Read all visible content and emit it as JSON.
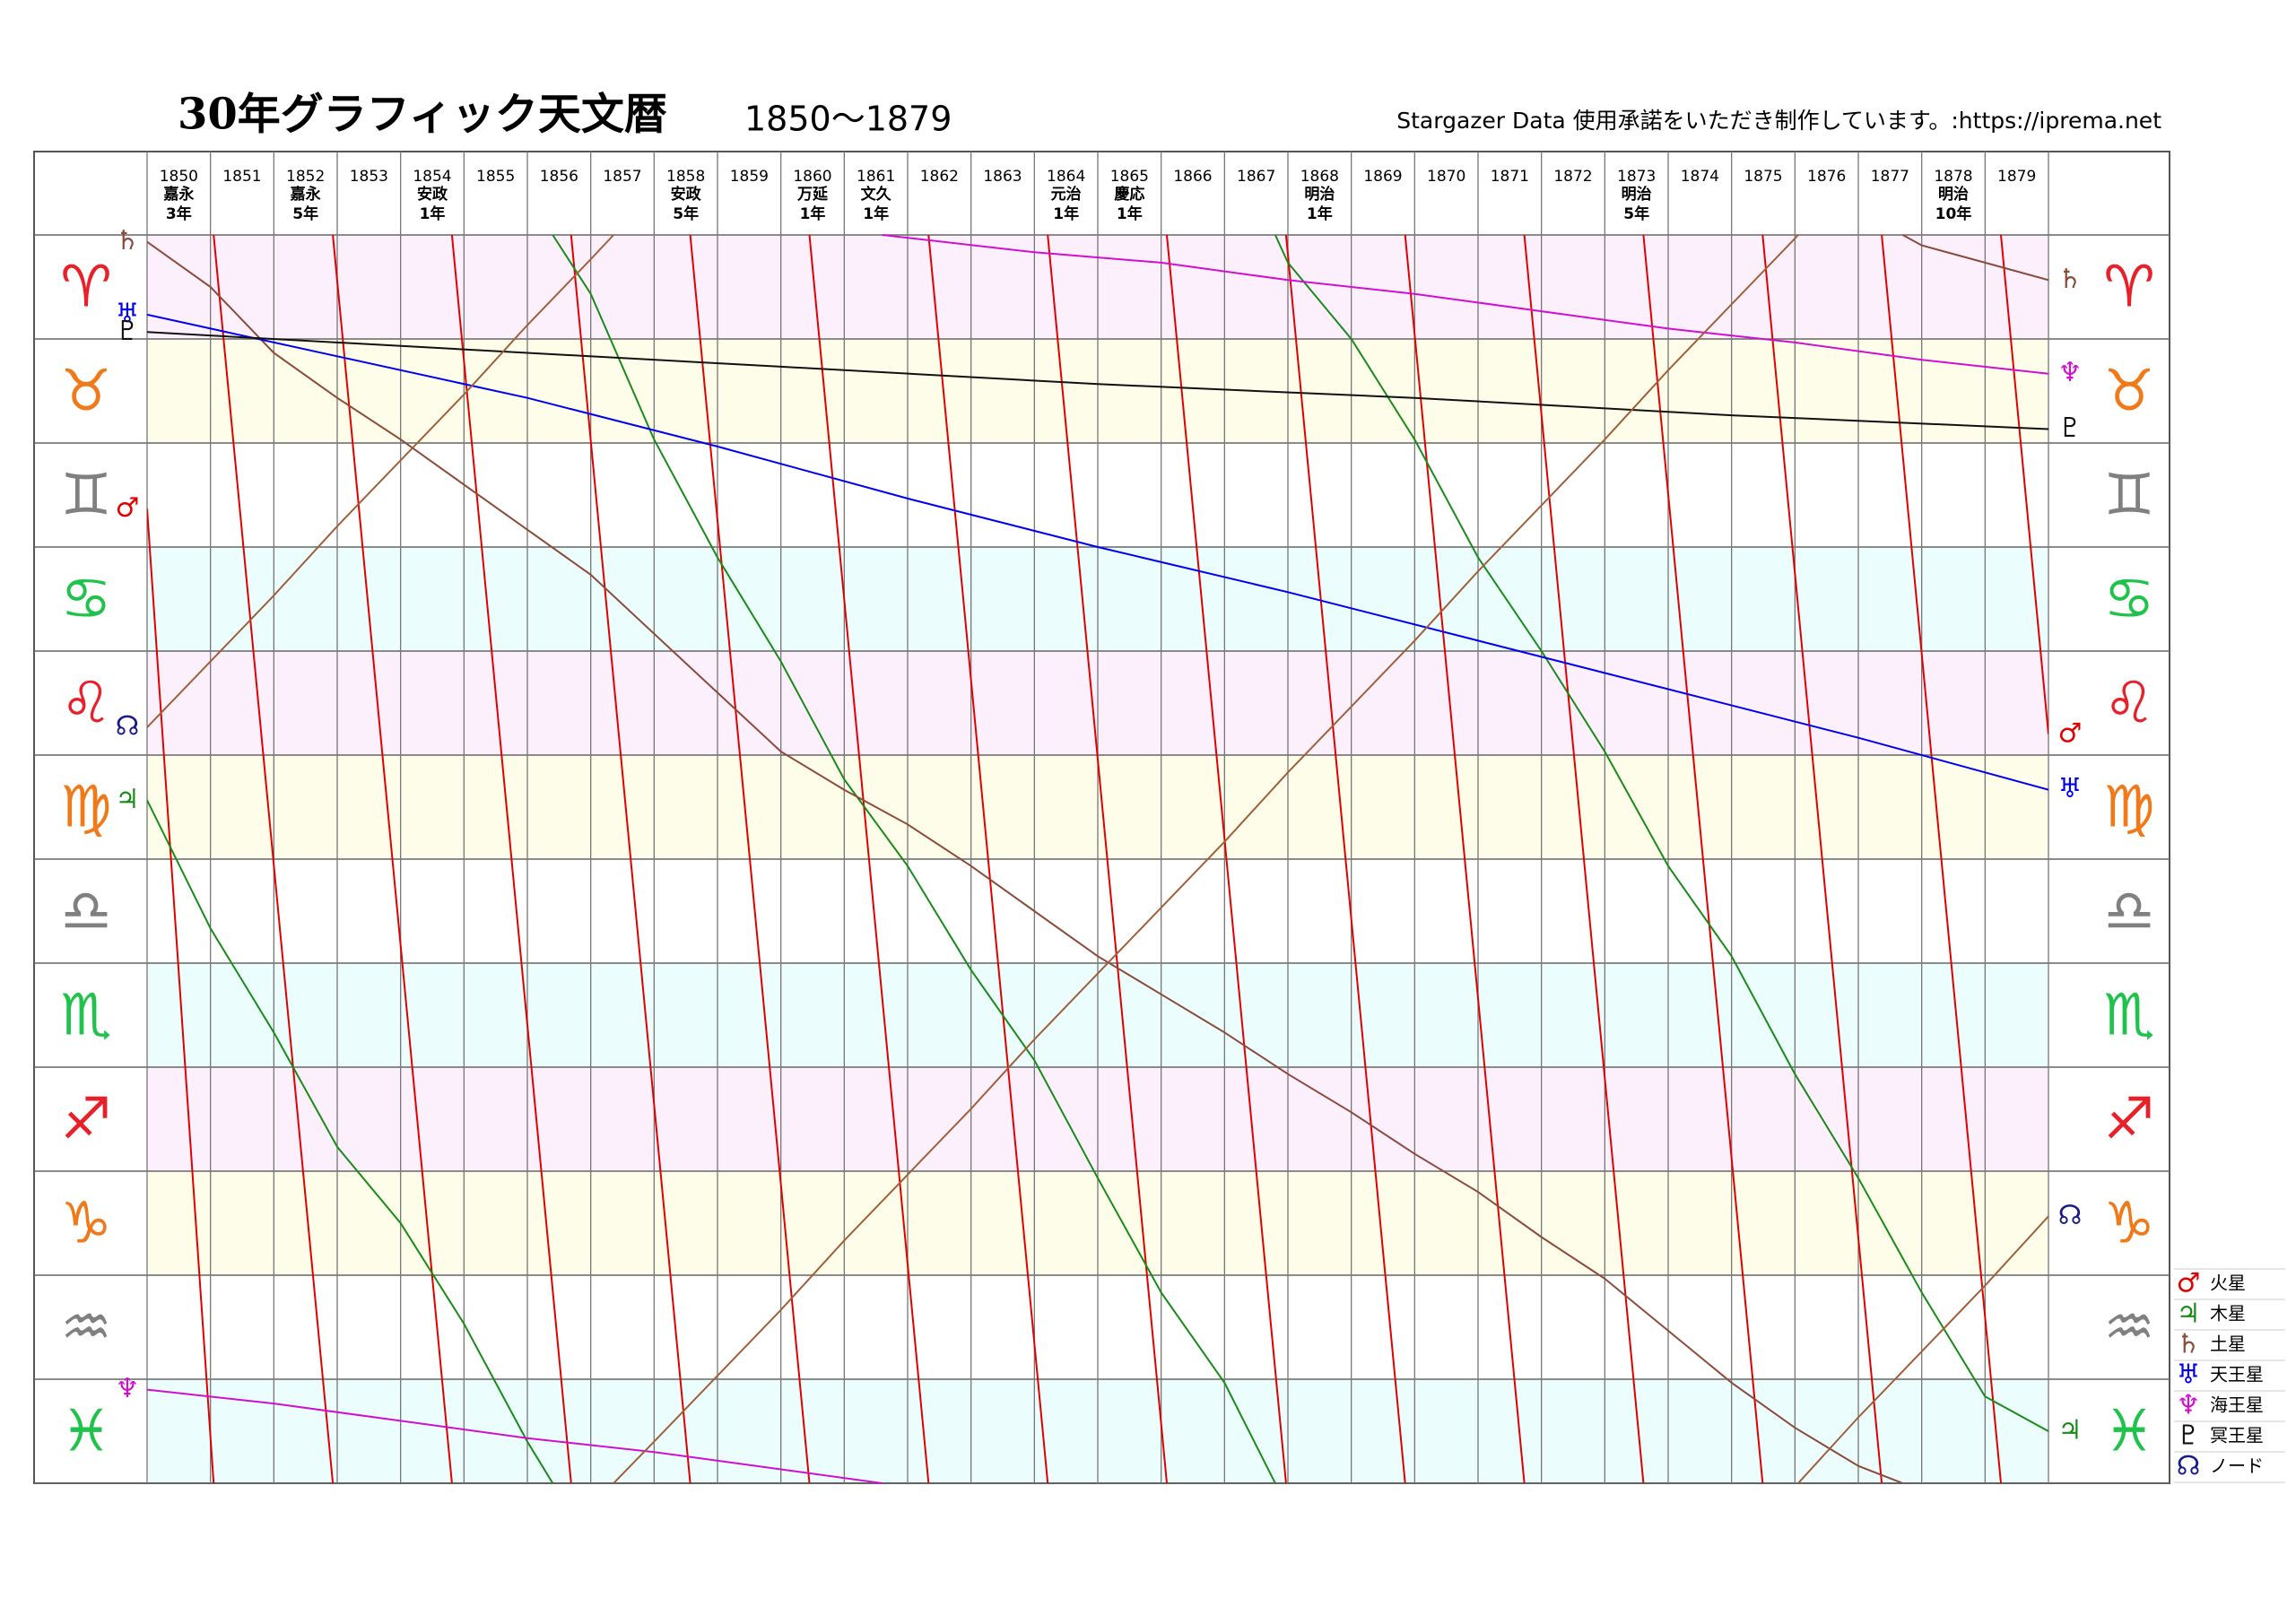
{
  "chart_data": {
    "type": "line",
    "title": "30年グラフィック天文暦",
    "subtitle": "1850〜1879",
    "credit": "Stargazer Data 使用承諾をいただき制作しています。:https://iprema.net",
    "xlim": [
      1850,
      1880
    ],
    "xticks": [
      1850,
      1851,
      1852,
      1853,
      1854,
      1855,
      1856,
      1857,
      1858,
      1859,
      1860,
      1861,
      1862,
      1863,
      1864,
      1865,
      1866,
      1867,
      1868,
      1869,
      1870,
      1871,
      1872,
      1873,
      1874,
      1875,
      1876,
      1877,
      1878,
      1879
    ],
    "eras": [
      {
        "year": 1850,
        "name": "嘉永",
        "nen": "3年"
      },
      {
        "year": 1852,
        "name": "嘉永",
        "nen": "5年"
      },
      {
        "year": 1854,
        "name": "安政",
        "nen": "1年"
      },
      {
        "year": 1858,
        "name": "安政",
        "nen": "5年"
      },
      {
        "year": 1860,
        "name": "万延",
        "nen": "1年"
      },
      {
        "year": 1861,
        "name": "文久",
        "nen": "1年"
      },
      {
        "year": 1864,
        "name": "元治",
        "nen": "1年"
      },
      {
        "year": 1865,
        "name": "慶応",
        "nen": "1年"
      },
      {
        "year": 1868,
        "name": "明治",
        "nen": "1年"
      },
      {
        "year": 1873,
        "name": "明治",
        "nen": "5年"
      },
      {
        "year": 1878,
        "name": "明治",
        "nen": "10年"
      }
    ],
    "ylim": [
      0,
      360
    ],
    "yticks": [
      0,
      30,
      60,
      90,
      120,
      150,
      180,
      210,
      240,
      270,
      300,
      330,
      360
    ],
    "signs": [
      {
        "symbol": "♈",
        "color": "#e8202a"
      },
      {
        "symbol": "♉",
        "color": "#f07a1a"
      },
      {
        "symbol": "♊",
        "color": "#808080"
      },
      {
        "symbol": "♋",
        "color": "#1fc24a"
      },
      {
        "symbol": "♌",
        "color": "#e8202a"
      },
      {
        "symbol": "♍",
        "color": "#f07a1a"
      },
      {
        "symbol": "♎",
        "color": "#808080"
      },
      {
        "symbol": "♏",
        "color": "#1fc24a"
      },
      {
        "symbol": "♐",
        "color": "#e8202a"
      },
      {
        "symbol": "♑",
        "color": "#f07a1a"
      },
      {
        "symbol": "♒",
        "color": "#808080"
      },
      {
        "symbol": "♓",
        "color": "#1fc24a"
      }
    ],
    "band_colors": [
      "#fdf0fd",
      "#fdfde9",
      "#ffffff",
      "#ebfdfd"
    ],
    "grid": true,
    "series": [
      {
        "name": "火星",
        "symbol": "♂",
        "color": "#e00000",
        "x": [
          1850,
          1851.05,
          1851.05,
          1851.05,
          1852.93,
          1852.93,
          1852.93,
          1854.81,
          1854.81,
          1854.81,
          1856.69,
          1856.69,
          1856.69,
          1858.57,
          1858.57,
          1858.57,
          1860.45,
          1860.45,
          1860.45,
          1862.33,
          1862.33,
          1862.33,
          1864.21,
          1864.21,
          1864.21,
          1866.09,
          1866.09,
          1866.09,
          1867.97,
          1867.97,
          1867.97,
          1869.85,
          1869.85,
          1869.85,
          1871.73,
          1871.73,
          1871.73,
          1873.61,
          1873.61,
          1873.61,
          1875.49,
          1875.49,
          1875.49,
          1877.37,
          1877.37,
          1877.37,
          1879.25,
          1879.25,
          1879.25,
          1880
        ],
        "values": [
          79,
          360,
          null,
          0,
          360,
          null,
          0,
          360,
          null,
          0,
          360,
          null,
          0,
          360,
          null,
          0,
          360,
          null,
          0,
          360,
          null,
          0,
          360,
          null,
          0,
          360,
          null,
          0,
          360,
          null,
          0,
          360,
          null,
          0,
          360,
          null,
          0,
          360,
          null,
          0,
          360,
          null,
          0,
          360,
          null,
          0,
          360,
          null,
          0,
          144
        ]
      },
      {
        "name": "木星",
        "symbol": "♃",
        "color": "#1a8a1a",
        "x": [
          1850,
          1851,
          1852,
          1853,
          1854,
          1855,
          1856,
          1856.4,
          1856.4,
          1856.4,
          1857,
          1858,
          1859,
          1860,
          1861,
          1862,
          1863,
          1864,
          1865,
          1866,
          1867,
          1867.8,
          1867.8,
          1867.8,
          1868,
          1869,
          1870,
          1871,
          1872,
          1873,
          1874,
          1875,
          1876,
          1877,
          1878,
          1879,
          1880
        ],
        "values": [
          163,
          200,
          230,
          263,
          285,
          314,
          348,
          360,
          null,
          0,
          17,
          59,
          93,
          123,
          157,
          182,
          212,
          238,
          272,
          305,
          331,
          360,
          null,
          0,
          8,
          30,
          59,
          93,
          120,
          149,
          182,
          208,
          242,
          272,
          305,
          335,
          345
        ]
      },
      {
        "name": "土星",
        "symbol": "♄",
        "color": "#8b4a3a",
        "x": [
          1850,
          1851,
          1852,
          1853,
          1854,
          1855,
          1856,
          1857,
          1858,
          1859,
          1860,
          1861,
          1862,
          1863,
          1864,
          1865,
          1866,
          1867,
          1868,
          1869,
          1870,
          1871,
          1872,
          1873,
          1874,
          1875,
          1876,
          1877,
          1877.7,
          1877.7,
          1877.7,
          1878,
          1879,
          1880
        ],
        "values": [
          2,
          15,
          34,
          47,
          59,
          72,
          85,
          98,
          115,
          132,
          149,
          160,
          170,
          182,
          195,
          208,
          219,
          230,
          242,
          253,
          265,
          276,
          289,
          301,
          316,
          331,
          344,
          355,
          360,
          null,
          0,
          3,
          8,
          13
        ]
      },
      {
        "name": "天王星",
        "symbol": "♅",
        "color": "#0000ee",
        "x": [
          1850,
          1853,
          1856,
          1859,
          1862,
          1865,
          1868,
          1871,
          1874,
          1877,
          1880
        ],
        "values": [
          23,
          35,
          47,
          61,
          76,
          90,
          103,
          117,
          131,
          145,
          160
        ]
      },
      {
        "name": "海王星",
        "symbol": "♆",
        "color": "#d010d0",
        "x": [
          1850,
          1852,
          1854,
          1856,
          1858,
          1860,
          1861.6,
          1861.6,
          1861.6,
          1864,
          1866,
          1868,
          1870,
          1872,
          1874,
          1876,
          1878,
          1880
        ],
        "values": [
          333,
          337,
          342,
          347,
          351,
          356,
          360,
          null,
          0,
          5,
          8,
          13,
          17,
          22,
          27,
          31,
          36,
          40
        ]
      },
      {
        "name": "冥王星",
        "symbol": "♇",
        "color": "#111111",
        "x": [
          1850,
          1855,
          1860,
          1865,
          1870,
          1875,
          1880
        ],
        "values": [
          28,
          33,
          38,
          43,
          47,
          52,
          56
        ]
      },
      {
        "name": "ノード",
        "symbol": "☊",
        "color": "#a0603a",
        "label_color": "#1a1a8a",
        "x": [
          1850,
          1851,
          1852,
          1853,
          1854,
          1855,
          1856,
          1857,
          1857.36,
          1857.36,
          1857.36,
          1858,
          1859,
          1860,
          1861,
          1862,
          1863,
          1864,
          1865,
          1866,
          1867,
          1868,
          1869,
          1870,
          1871,
          1872,
          1873,
          1874,
          1875,
          1876,
          1876.05,
          1876.05,
          1876.05,
          1877,
          1878,
          1879,
          1880
        ],
        "values": [
          142,
          123,
          104,
          84,
          65,
          46,
          26,
          7,
          0,
          null,
          360,
          348,
          329,
          310,
          290,
          271,
          252,
          232,
          213,
          194,
          175,
          155,
          136,
          117,
          97,
          78,
          59,
          39,
          20,
          1,
          0,
          null,
          360,
          341,
          322,
          303,
          283
        ]
      }
    ]
  }
}
